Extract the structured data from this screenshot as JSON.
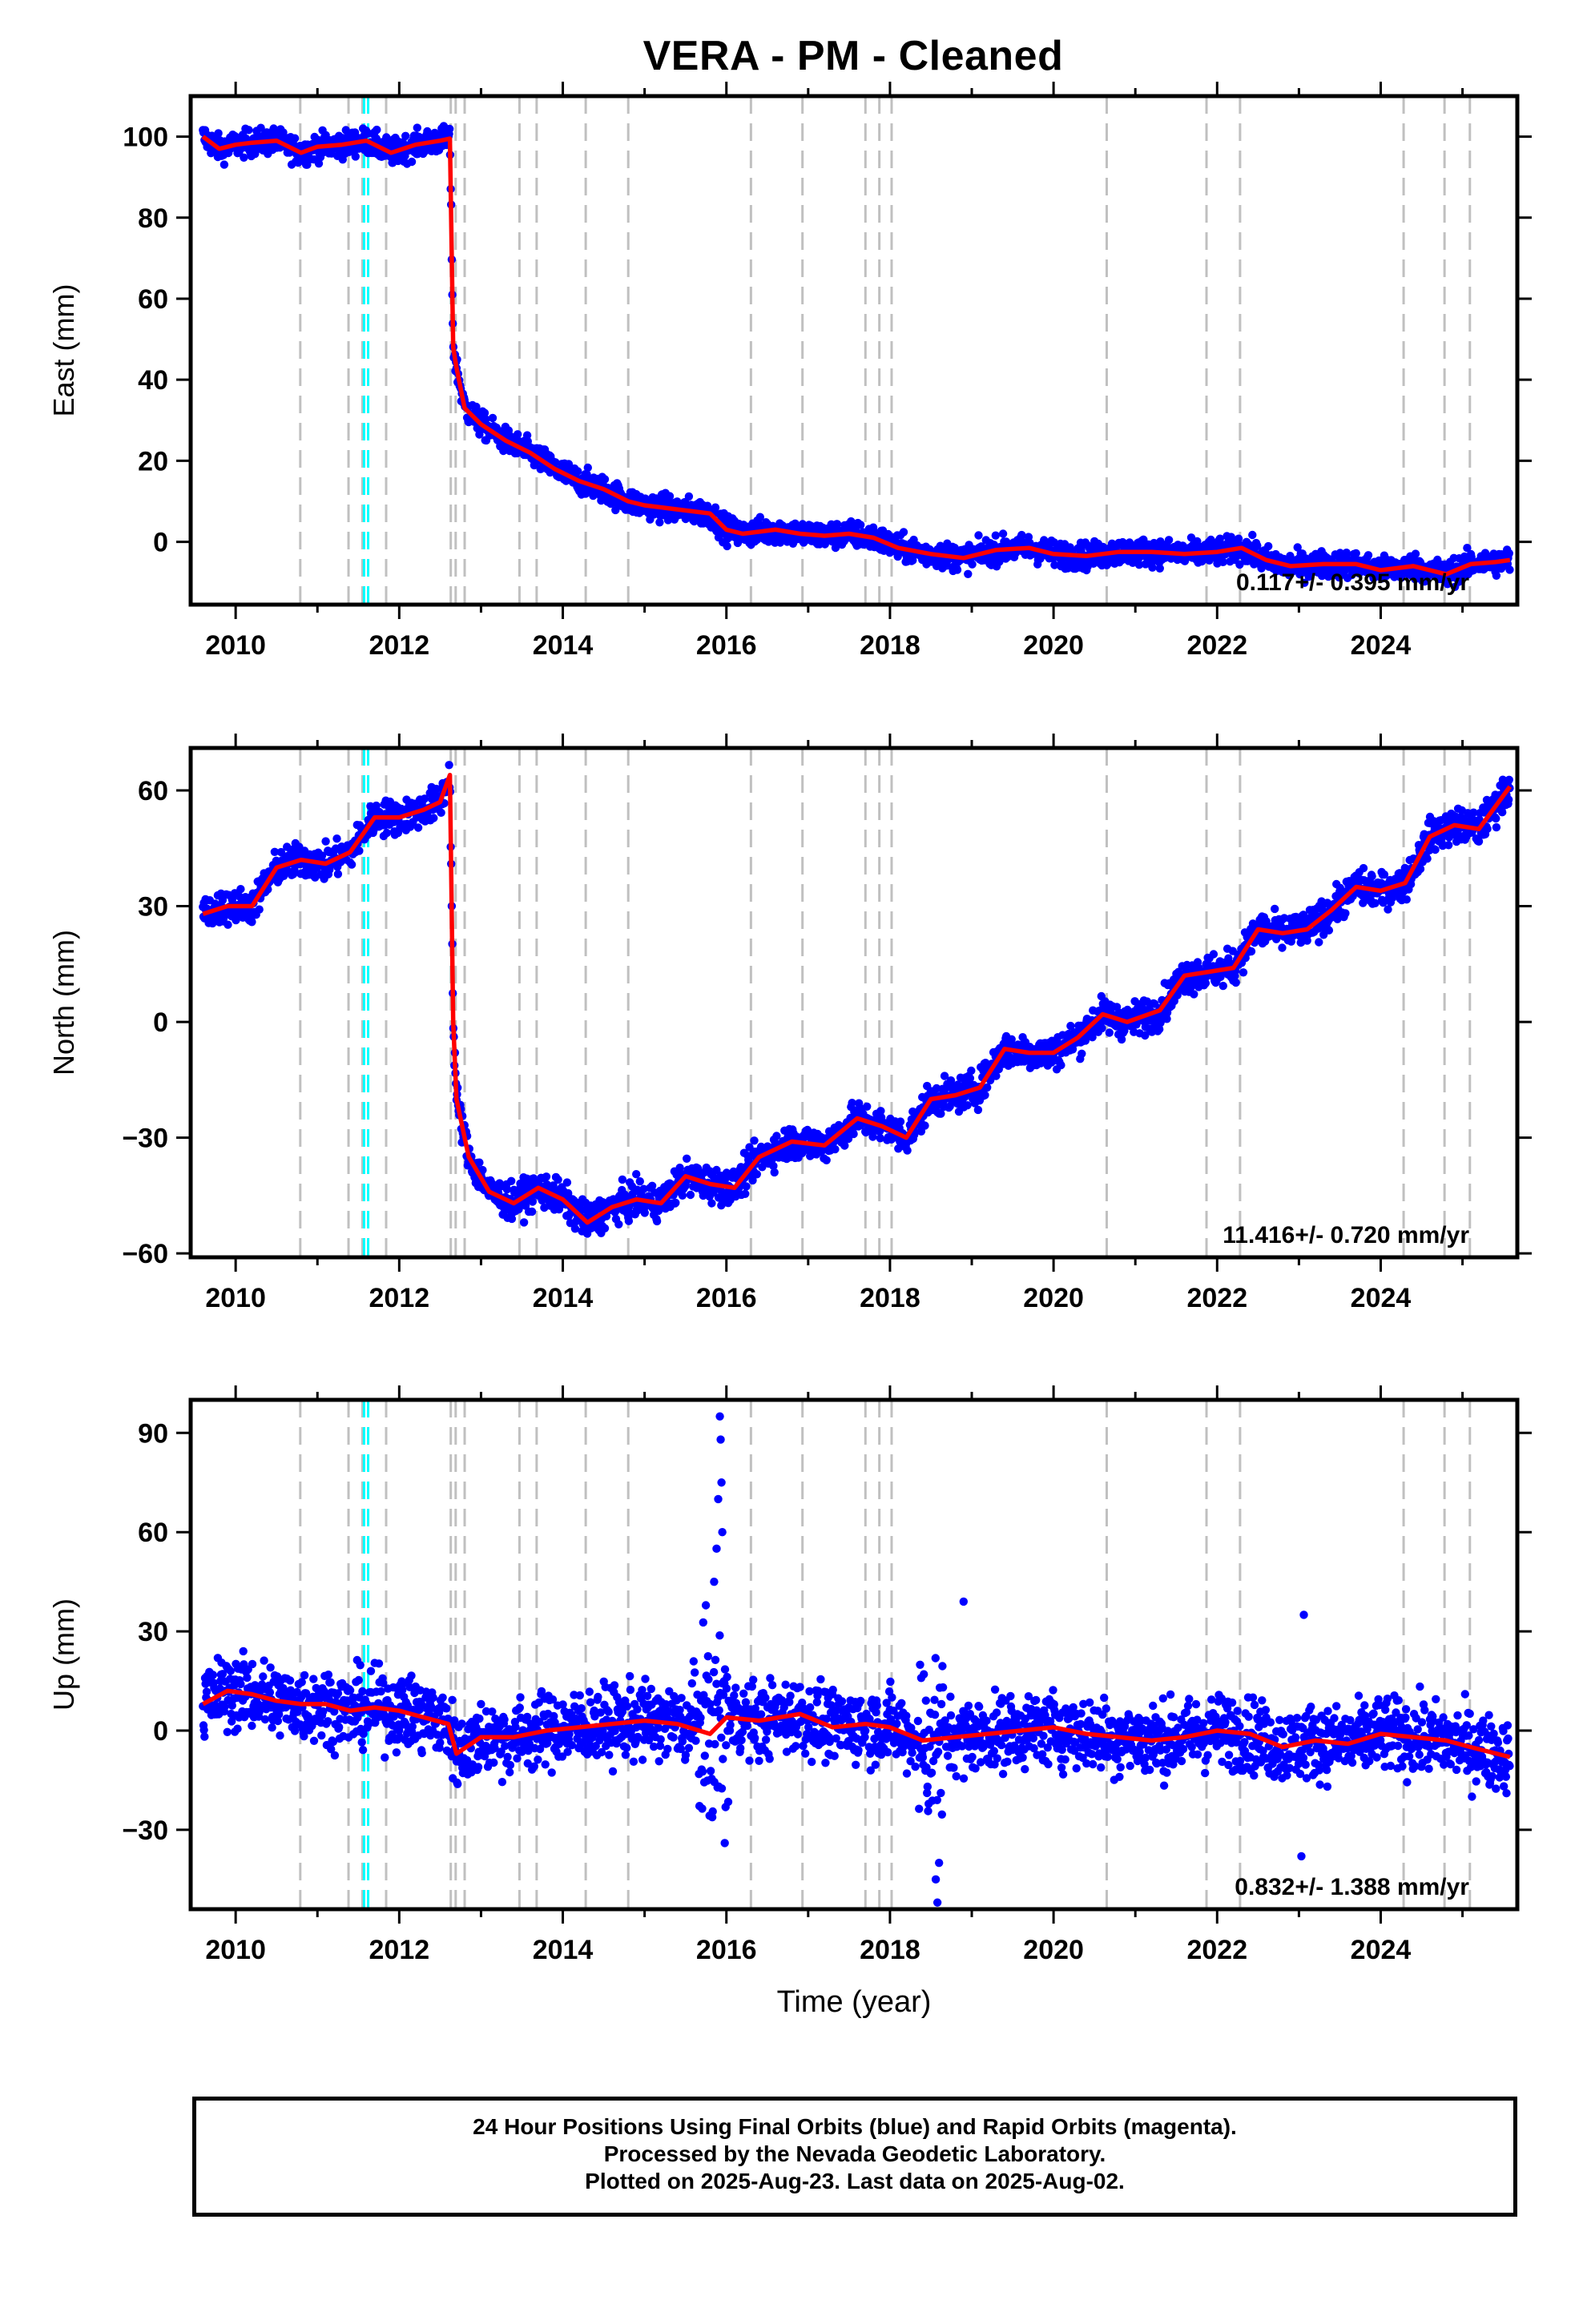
{
  "title": "VERA  - PM - Cleaned",
  "footer": {
    "line1": "24 Hour Positions Using Final Orbits (blue) and Rapid Orbits (magenta).",
    "line2": "Processed by the Nevada Geodetic Laboratory.",
    "line3": "Plotted on 2025-Aug-23. Last data on 2025-Aug-02."
  },
  "colors": {
    "final_orbits": "#0000ff",
    "model": "#ff0000",
    "equipment_change": "#c0c0c0",
    "earthquake": "#00ffff",
    "frame": "#000000"
  },
  "event_lines": {
    "gray_years": [
      2010.79,
      2011.38,
      2011.55,
      2011.84,
      2012.63,
      2012.69,
      2012.8,
      2013.47,
      2013.68,
      2014.28,
      2014.8,
      2016.3,
      2016.93,
      2017.7,
      2017.87,
      2018.02,
      2020.65,
      2021.87,
      2022.28,
      2024.28,
      2024.78,
      2025.09
    ],
    "cyan_years": [
      2011.57,
      2011.62
    ]
  },
  "chart_data": [
    {
      "type": "scatter",
      "title": "VERA  - PM - Cleaned",
      "xlabel": "",
      "ylabel": "East (mm)",
      "xlim": [
        2009.45,
        2025.67
      ],
      "ylim": [
        -15.5,
        110
      ],
      "xticks": [
        "2010",
        "2012",
        "2014",
        "2016",
        "2018",
        "2020",
        "2022",
        "2024"
      ],
      "yticks": [
        "0",
        "20",
        "40",
        "60",
        "80",
        "100"
      ],
      "annotation": "0.117+/- 0.395 mm/yr",
      "grid": false,
      "series": [
        {
          "name": "",
          "x": [
            2009.6,
            2009.8,
            2010.0,
            2010.2,
            2010.5,
            2010.8,
            2011.0,
            2011.3,
            2011.6,
            2011.9,
            2012.2,
            2012.5,
            2012.62,
            2012.66,
            2012.7,
            2012.8,
            2013.0,
            2013.3,
            2013.6,
            2013.9,
            2014.2,
            2014.5,
            2014.8,
            2015.0,
            2015.4,
            2015.8,
            2016.0,
            2016.2,
            2016.6,
            2016.9,
            2017.2,
            2017.5,
            2017.8,
            2018.1,
            2018.5,
            2018.9,
            2019.3,
            2019.7,
            2020.0,
            2020.4,
            2020.8,
            2021.2,
            2021.6,
            2022.0,
            2022.3,
            2022.6,
            2022.9,
            2023.3,
            2023.7,
            2024.0,
            2024.4,
            2024.8,
            2025.1,
            2025.4,
            2025.58
          ],
          "y": [
            100,
            97,
            98,
            98.5,
            99,
            96,
            97.5,
            98,
            99,
            96,
            98,
            99,
            99.5,
            48,
            43,
            33,
            29,
            25,
            22,
            18,
            15,
            13,
            10,
            9,
            8,
            7,
            3,
            2,
            3,
            2,
            1.5,
            2,
            1,
            -1.5,
            -3,
            -4,
            -2,
            -1.5,
            -3,
            -3.5,
            -2.5,
            -2.5,
            -3,
            -2.5,
            -1.5,
            -4.5,
            -6,
            -5.5,
            -5.5,
            -7,
            -6,
            -8,
            -5.5,
            -5,
            -4.5
          ]
        },
        {
          "name": "",
          "x": [
            2009.6,
            2009.8,
            2010.0,
            2010.2,
            2010.5,
            2010.8,
            2011.0,
            2011.3,
            2011.6,
            2011.9,
            2012.2,
            2012.5,
            2012.62,
            2012.66,
            2012.7,
            2012.8,
            2013.0,
            2013.3,
            2013.6,
            2013.9,
            2014.2,
            2014.5,
            2014.8,
            2015.0,
            2015.4,
            2015.8,
            2016.0,
            2016.2,
            2016.6,
            2016.9,
            2017.2,
            2017.5,
            2017.8,
            2018.1,
            2018.5,
            2018.9,
            2019.3,
            2019.7,
            2020.0,
            2020.4,
            2020.8,
            2021.2,
            2021.6,
            2022.0,
            2022.3,
            2022.6,
            2022.9,
            2023.3,
            2023.7,
            2024.0,
            2024.4,
            2024.8,
            2025.1,
            2025.4,
            2025.58
          ],
          "y": [
            100,
            97,
            98,
            98.5,
            99,
            96,
            97.5,
            98,
            99,
            96,
            98,
            99,
            99.5,
            48,
            43,
            33,
            29,
            25,
            22,
            18,
            15,
            13,
            10,
            9,
            8,
            7,
            3,
            2,
            3,
            2,
            1.5,
            2,
            1,
            -1.5,
            -3,
            -4,
            -2,
            -1.5,
            -3,
            -3.5,
            -2.5,
            -2.5,
            -3,
            -2.5,
            -1.5,
            -4.5,
            -6,
            -5.5,
            -5.5,
            -7,
            -6,
            -8,
            -5.5,
            -5,
            -4.5
          ]
        }
      ]
    },
    {
      "type": "scatter",
      "title": "",
      "xlabel": "",
      "ylabel": "North (mm)",
      "xlim": [
        2009.45,
        2025.67
      ],
      "ylim": [
        -61,
        71
      ],
      "xticks": [
        "2010",
        "2012",
        "2014",
        "2016",
        "2018",
        "2020",
        "2022",
        "2024"
      ],
      "yticks": [
        "−60",
        "−30",
        "0",
        "30",
        "60"
      ],
      "annotation": "11.416+/- 0.720 mm/yr",
      "grid": false,
      "series": [
        {
          "name": "",
          "x": [
            2009.6,
            2009.9,
            2010.2,
            2010.5,
            2010.8,
            2011.1,
            2011.4,
            2011.7,
            2012.0,
            2012.3,
            2012.5,
            2012.62,
            2012.66,
            2012.7,
            2012.85,
            2013.1,
            2013.4,
            2013.7,
            2014.0,
            2014.3,
            2014.6,
            2014.9,
            2015.2,
            2015.5,
            2015.8,
            2016.1,
            2016.4,
            2016.8,
            2017.2,
            2017.6,
            2017.9,
            2018.2,
            2018.5,
            2018.8,
            2019.1,
            2019.4,
            2019.7,
            2020.0,
            2020.3,
            2020.6,
            2020.9,
            2021.3,
            2021.6,
            2021.9,
            2022.2,
            2022.5,
            2022.8,
            2023.1,
            2023.4,
            2023.7,
            2024.0,
            2024.3,
            2024.6,
            2024.9,
            2025.2,
            2025.58
          ],
          "y": [
            28,
            30,
            30,
            40,
            42,
            41,
            44,
            53,
            53,
            55,
            57,
            64,
            0,
            -20,
            -35,
            -44,
            -47,
            -43,
            -46,
            -52,
            -48,
            -46,
            -47,
            -40,
            -42,
            -43,
            -35,
            -31,
            -32,
            -25,
            -27,
            -30,
            -20,
            -19,
            -17,
            -7,
            -8,
            -8,
            -4,
            2,
            0,
            3,
            12,
            13,
            14,
            24,
            23,
            24,
            29,
            35,
            34,
            36,
            48,
            51,
            50,
            61
          ]
        },
        {
          "name": "",
          "x": [
            2009.6,
            2009.9,
            2010.2,
            2010.5,
            2010.8,
            2011.1,
            2011.4,
            2011.7,
            2012.0,
            2012.3,
            2012.5,
            2012.62,
            2012.66,
            2012.7,
            2012.85,
            2013.1,
            2013.4,
            2013.7,
            2014.0,
            2014.3,
            2014.6,
            2014.9,
            2015.2,
            2015.5,
            2015.8,
            2016.1,
            2016.4,
            2016.8,
            2017.2,
            2017.6,
            2017.9,
            2018.2,
            2018.5,
            2018.8,
            2019.1,
            2019.4,
            2019.7,
            2020.0,
            2020.3,
            2020.6,
            2020.9,
            2021.3,
            2021.6,
            2021.9,
            2022.2,
            2022.5,
            2022.8,
            2023.1,
            2023.4,
            2023.7,
            2024.0,
            2024.3,
            2024.6,
            2024.9,
            2025.2,
            2025.58
          ],
          "y": [
            28,
            30,
            30,
            40,
            42,
            41,
            44,
            53,
            53,
            55,
            57,
            64,
            0,
            -20,
            -35,
            -44,
            -47,
            -43,
            -46,
            -52,
            -48,
            -46,
            -47,
            -40,
            -42,
            -43,
            -35,
            -31,
            -32,
            -25,
            -27,
            -30,
            -20,
            -19,
            -17,
            -7,
            -8,
            -8,
            -4,
            2,
            0,
            3,
            12,
            13,
            14,
            24,
            23,
            24,
            29,
            35,
            34,
            36,
            48,
            51,
            50,
            61
          ]
        }
      ]
    },
    {
      "type": "scatter",
      "title": "",
      "xlabel": "Time (year)",
      "ylabel": "Up (mm)",
      "xlim": [
        2009.45,
        2025.67
      ],
      "ylim": [
        -54,
        100
      ],
      "xticks": [
        "2010",
        "2012",
        "2014",
        "2016",
        "2018",
        "2020",
        "2022",
        "2024"
      ],
      "yticks": [
        "−30",
        "0",
        "30",
        "60",
        "90"
      ],
      "annotation": "0.832+/- 1.388 mm/yr",
      "grid": false,
      "series": [
        {
          "name": "",
          "x": [
            2009.6,
            2009.9,
            2010.2,
            2010.5,
            2010.8,
            2011.1,
            2011.4,
            2011.7,
            2012.0,
            2012.3,
            2012.6,
            2012.7,
            2013.0,
            2013.4,
            2013.8,
            2014.2,
            2014.6,
            2015.0,
            2015.4,
            2015.8,
            2016.0,
            2016.4,
            2016.9,
            2017.3,
            2017.7,
            2018.0,
            2018.4,
            2018.8,
            2019.2,
            2019.6,
            2020.0,
            2020.4,
            2020.8,
            2021.2,
            2021.6,
            2022.0,
            2022.4,
            2022.8,
            2023.2,
            2023.6,
            2024.0,
            2024.4,
            2024.8,
            2025.1,
            2025.58
          ],
          "y": [
            8,
            12,
            11,
            9,
            8,
            8,
            6,
            7,
            6,
            4,
            2,
            -7,
            -2,
            -2,
            0,
            1,
            2,
            3,
            2,
            -1,
            4,
            3,
            5,
            1,
            2,
            1,
            -3,
            -2,
            -1,
            0,
            1,
            -1,
            -2,
            -3,
            -2,
            0,
            -1,
            -5,
            -3,
            -4,
            -1,
            -2,
            -3,
            -5,
            -8
          ]
        },
        {
          "name": "",
          "x": [
            2009.6,
            2009.9,
            2010.2,
            2010.5,
            2010.8,
            2011.1,
            2011.4,
            2011.7,
            2012.0,
            2012.3,
            2012.6,
            2012.7,
            2013.0,
            2013.4,
            2013.8,
            2014.2,
            2014.6,
            2015.0,
            2015.4,
            2015.8,
            2016.0,
            2016.4,
            2016.9,
            2017.3,
            2017.7,
            2018.0,
            2018.4,
            2018.8,
            2019.2,
            2019.6,
            2020.0,
            2020.4,
            2020.8,
            2021.2,
            2021.6,
            2022.0,
            2022.4,
            2022.8,
            2023.2,
            2023.6,
            2024.0,
            2024.4,
            2024.8,
            2025.1,
            2025.58
          ],
          "y": [
            8,
            12,
            11,
            9,
            8,
            8,
            6,
            7,
            6,
            4,
            2,
            -7,
            -2,
            -2,
            0,
            1,
            2,
            3,
            2,
            -1,
            4,
            3,
            5,
            1,
            2,
            1,
            -3,
            -2,
            -1,
            0,
            1,
            -1,
            -2,
            -3,
            -2,
            0,
            -1,
            -5,
            -3,
            -4,
            -1,
            -2,
            -3,
            -5,
            -8
          ]
        }
      ]
    }
  ]
}
